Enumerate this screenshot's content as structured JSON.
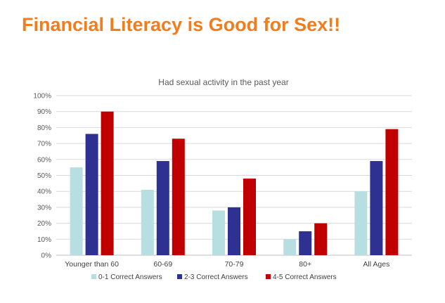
{
  "slide": {
    "title": "Financial Literacy is Good for Sex!!"
  },
  "colors": {
    "title": "#f07d1e",
    "grid": "#d9d9d9",
    "text": "#595959"
  },
  "chart_data": {
    "type": "bar",
    "title": "Had sexual activity in the past year",
    "xlabel": "",
    "ylabel": "",
    "ylim": [
      0,
      100
    ],
    "yticks": [
      "0%",
      "10%",
      "20%",
      "30%",
      "40%",
      "50%",
      "60%",
      "70%",
      "80%",
      "90%",
      "100%"
    ],
    "grid": true,
    "legend_position": "bottom",
    "categories": [
      "Younger than 60",
      "60-69",
      "70-79",
      "80+",
      "All Ages"
    ],
    "series": [
      {
        "name": "0-1 Correct Answers",
        "color": "#b7dee0",
        "values": [
          55,
          41,
          28,
          10,
          40
        ]
      },
      {
        "name": "2-3 Correct Answers",
        "color": "#2e3192",
        "values": [
          76,
          59,
          30,
          15,
          59
        ]
      },
      {
        "name": "4-5 Correct Answers",
        "color": "#c00000",
        "values": [
          90,
          73,
          48,
          20,
          79
        ]
      }
    ]
  }
}
